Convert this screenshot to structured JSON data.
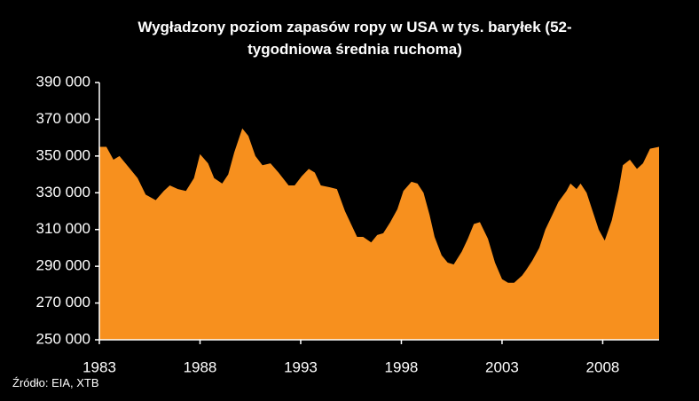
{
  "chart_data": {
    "type": "area",
    "title": "Wygładzony poziom zapasów ropy w USA w tys. baryłek (52-tygodniowa średnia ruchoma)",
    "source": "Źródło: EIA, XTB",
    "color": "#f7901e",
    "x": [
      1983.0,
      1983.35,
      1983.7,
      1984.0,
      1984.45,
      1984.9,
      1985.3,
      1985.8,
      1986.2,
      1986.5,
      1986.9,
      1987.3,
      1987.7,
      1988.0,
      1988.4,
      1988.7,
      1989.1,
      1989.4,
      1989.7,
      1990.1,
      1990.4,
      1990.75,
      1991.1,
      1991.5,
      1991.9,
      1992.4,
      1992.7,
      1993.05,
      1993.4,
      1993.7,
      1994.0,
      1994.45,
      1994.8,
      1995.2,
      1995.5,
      1995.8,
      1996.1,
      1996.5,
      1996.8,
      1997.1,
      1997.45,
      1997.8,
      1998.1,
      1998.5,
      1998.8,
      1999.1,
      1999.4,
      1999.65,
      2000.0,
      2000.3,
      2000.6,
      2001.0,
      2001.3,
      2001.6,
      2001.9,
      2002.3,
      2002.65,
      2003.0,
      2003.3,
      2003.6,
      2004.0,
      2004.2,
      2004.5,
      2004.85,
      2005.15,
      2005.5,
      2005.8,
      2006.2,
      2006.4,
      2006.7,
      2006.9,
      2007.2,
      2007.5,
      2007.8,
      2008.1,
      2008.45,
      2008.8,
      2009.0,
      2009.35,
      2009.7,
      2010.0,
      2010.35,
      2010.8
    ],
    "values": [
      355000,
      355000,
      348000,
      350000,
      344000,
      338000,
      329000,
      326000,
      331000,
      334000,
      332000,
      331000,
      338000,
      351000,
      346000,
      338000,
      335000,
      340000,
      352000,
      365000,
      361000,
      350000,
      345000,
      346000,
      341000,
      334000,
      334000,
      339000,
      343000,
      341000,
      334000,
      333000,
      332000,
      320000,
      313000,
      306000,
      306000,
      303000,
      307000,
      308000,
      314000,
      321000,
      331000,
      336000,
      335000,
      330000,
      318000,
      306000,
      296000,
      292000,
      291000,
      298000,
      305000,
      313000,
      314000,
      305000,
      292000,
      283000,
      281000,
      281000,
      285000,
      288000,
      293000,
      300000,
      310000,
      318000,
      325000,
      331000,
      335000,
      332000,
      335000,
      330000,
      320000,
      310000,
      304000,
      315000,
      332000,
      345000,
      348000,
      343000,
      346000,
      354000,
      355000
    ],
    "xlim": [
      1983,
      2010.8
    ],
    "xticks": [
      1983,
      1988,
      1993,
      1998,
      2003,
      2008
    ],
    "ylim": [
      250000,
      390000
    ],
    "yticks": [
      {
        "value": 250000,
        "label": "250 000"
      },
      {
        "value": 270000,
        "label": "270 000"
      },
      {
        "value": 290000,
        "label": "290 000"
      },
      {
        "value": 310000,
        "label": "310 000"
      },
      {
        "value": 330000,
        "label": "330 000"
      },
      {
        "value": 350000,
        "label": "350 000"
      },
      {
        "value": 370000,
        "label": "370 000"
      },
      {
        "value": 390000,
        "label": "390 000"
      }
    ]
  }
}
